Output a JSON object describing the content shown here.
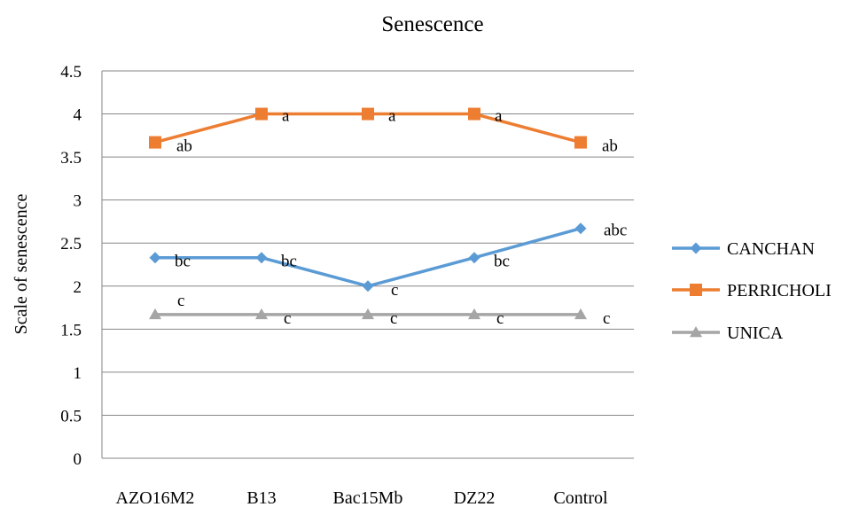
{
  "chart_data": {
    "type": "line",
    "title": "Senescence",
    "xlabel": "",
    "ylabel": "Scale of senescence",
    "categories": [
      "AZO16M2",
      "B13",
      "Bac15Mb",
      "DZ22",
      "Control"
    ],
    "ylim": [
      0,
      4.5
    ],
    "yticks": [
      "0",
      "0.5",
      "1",
      "1.5",
      "2",
      "2.5",
      "3",
      "3.5",
      "4",
      "4.5"
    ],
    "grid": true,
    "legend_position": "right",
    "series": [
      {
        "name": "CANCHAN",
        "color": "#5B9BD5",
        "marker": "diamond",
        "values": [
          2.33,
          2.33,
          2.0,
          2.33,
          2.67
        ],
        "labels": [
          "bc",
          "bc",
          "c",
          "bc",
          "abc"
        ]
      },
      {
        "name": "PERRICHOLI",
        "color": "#ED7D31",
        "marker": "square",
        "values": [
          3.67,
          4.0,
          4.0,
          4.0,
          3.67
        ],
        "labels": [
          "ab",
          "a",
          "a",
          "a",
          "ab"
        ]
      },
      {
        "name": "UNICA",
        "color": "#A5A5A5",
        "marker": "triangle",
        "values": [
          1.67,
          1.67,
          1.67,
          1.67,
          1.67
        ],
        "labels": [
          "c",
          "c",
          "c",
          "c",
          "c"
        ]
      }
    ]
  }
}
